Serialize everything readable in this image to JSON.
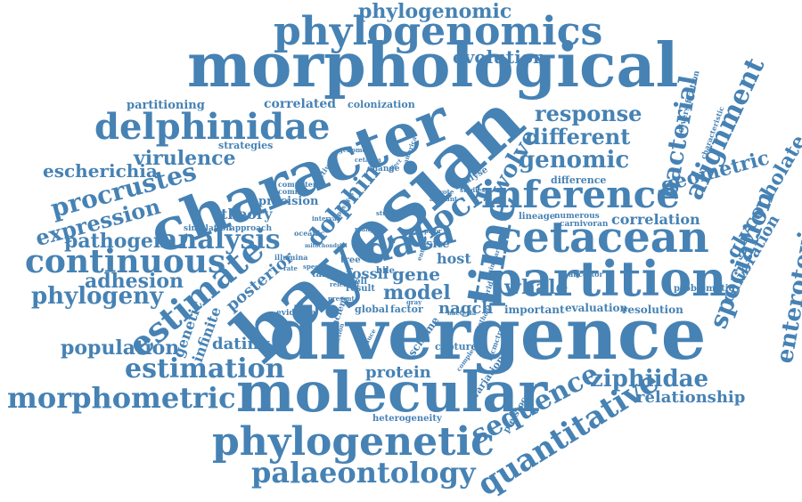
{
  "style": {
    "word_color": "#4682b4",
    "background": "#ffffff"
  },
  "words": {
    "divergence": "divergence",
    "bayesian": "bayesian",
    "character": "character",
    "morphological": "morphological",
    "molecular": "molecular",
    "partition": "partition",
    "cetacean": "cetacean",
    "inference": "inference",
    "phylogenomics": "phylogenomics",
    "phylogenetic": "phylogenetic",
    "time": "time",
    "delphinidae": "delphinidae",
    "continuous": "continuous",
    "data": "data",
    "estimate": "estimate",
    "analysis": "analysis",
    "clock": "clock",
    "morphometric": "morphometric",
    "palaeontology": "palaeontology",
    "quantitative": "quantitative",
    "sequence": "sequence",
    "estimation": "estimation",
    "procrustes": "procrustes",
    "phylogeny": "phylogeny",
    "expression": "expression",
    "pathogen": "pathogen",
    "virulence": "virulence",
    "genomic": "genomic",
    "different": "different",
    "response": "response",
    "alignment": "alignment",
    "bacterial": "bacterial",
    "wolve": "wolve",
    "speciation": "speciation",
    "enterotoxigenic": "enterotoxigenic",
    "glycocholate": "glycocholate",
    "calibration": "calibration",
    "geometric": "geometric",
    "ziphiidae": "ziphiidae",
    "relationship": "relationship",
    "population": "population",
    "adhesion": "adhesion",
    "escherichia": "escherichia",
    "phylogenomic": "phylogenomic",
    "evolution": "evolution",
    "dolphin": "dolphin",
    "whale": "whale",
    "model": "model",
    "gene": "gene",
    "nagch": "nagch",
    "fossil": "fossil",
    "protein": "protein",
    "dating": "dating",
    "infinite": "infinite",
    "genetic": "genetic",
    "posterior": "posterior",
    "theory": "theory",
    "correlation": "correlation",
    "partitioning": "partitioning",
    "correlated": "correlated",
    "colonization": "colonization",
    "strategies": "strategies",
    "precision": "precision",
    "host": "host",
    "site": "site",
    "difference": "difference",
    "resolution": "resolution",
    "evaluation": "evaluation",
    "important": "important",
    "heterogeneity": "heterogeneity",
    "capture": "capture",
    "pleistocene": "pleistocene",
    "variation": "variation",
    "scheme": "scheme",
    "factor": "factor",
    "global": "global",
    "result": "result",
    "cell": "cell",
    "bile": "bile",
    "target": "target",
    "tree": "tree",
    "evidence": "evidence",
    "ancient": "ancient",
    "diversification": "diversification",
    "characteristic": "characteristic",
    "problematic": "problematic",
    "ancestor": "ancestor",
    "lineage": "lineage",
    "numerous": "numerous",
    "carnivoran": "carnivoran",
    "simulation": "simulation",
    "approach": "approach",
    "oceanic": "oceanic",
    "illumina": "illumina",
    "specific": "specific",
    "analyse": "analyse",
    "change": "change",
    "computer": "computer",
    "common": "common",
    "activate": "activate",
    "genome": "genome",
    "cetacea": "cetacea",
    "america": "america",
    "study": "study",
    "many": "many",
    "interval": "interval",
    "positive": "positive",
    "prior": "prior",
    "coyote": "coyote",
    "account": "account",
    "studies": "studies",
    "released": "released",
    "present": "present",
    "gray": "gray",
    "induce": "induce",
    "induction": "induction",
    "complete": "complete",
    "mcmctree": "mcmctree",
    "method": "method",
    "bacteria": "bacteria",
    "world": "world",
    "similar": "similar",
    "entire": "entire",
    "effect": "effect",
    "mitochondrial": "mitochondrial",
    "rate": "rate"
  }
}
